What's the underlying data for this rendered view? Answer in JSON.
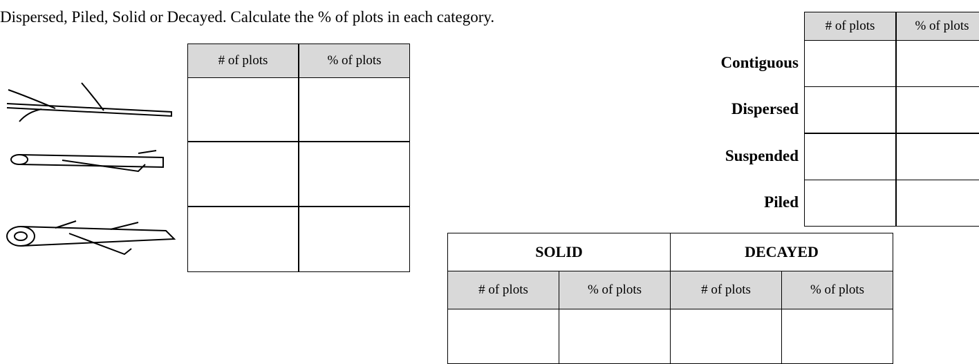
{
  "intro": {
    "line": "Dispersed, Piled, Solid or Decayed.  Calculate the % of plots in each category."
  },
  "left_table": {
    "headers": [
      "# of plots",
      "% of  plots"
    ]
  },
  "right_table": {
    "headers": [
      "# of plots",
      "% of  plots"
    ],
    "row_labels": [
      "Contiguous",
      "Dispersed",
      "Suspended",
      "Piled"
    ]
  },
  "bottom_table": {
    "groups": [
      "SOLID",
      "DECAYED"
    ],
    "headers": [
      "# of plots",
      "% of  plots",
      "# of plots",
      "% of  plots"
    ]
  }
}
